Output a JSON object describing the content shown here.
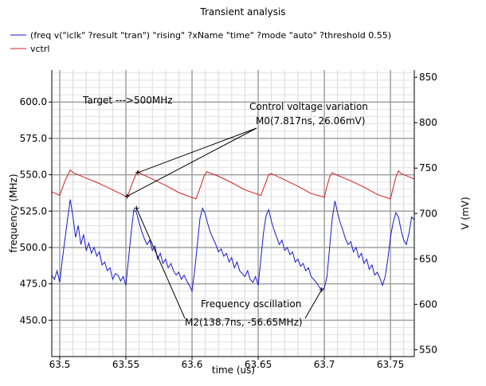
{
  "chart_data": {
    "type": "line",
    "title": "Transient analysis",
    "xlabel": "time (us)",
    "ylabel_left": "frequency (MHz)",
    "ylabel_right": "V (mV)",
    "xlim": [
      63.494,
      63.768
    ],
    "ylim_left": [
      425,
      622
    ],
    "ylim_right": [
      542.5,
      858
    ],
    "x_ticks": [
      {
        "value": 63.5,
        "label": "63.5"
      },
      {
        "value": 63.55,
        "label": "63.55"
      },
      {
        "value": 63.6,
        "label": "63.6"
      },
      {
        "value": 63.65,
        "label": "63.65"
      },
      {
        "value": 63.7,
        "label": "63.7"
      },
      {
        "value": 63.75,
        "label": "63.75"
      }
    ],
    "y_left_ticks": [
      {
        "value": 450,
        "label": "450.0"
      },
      {
        "value": 475,
        "label": "475.0"
      },
      {
        "value": 500,
        "label": "500.0"
      },
      {
        "value": 525,
        "label": "525.0"
      },
      {
        "value": 550,
        "label": "550.0"
      },
      {
        "value": 575,
        "label": "575.0"
      },
      {
        "value": 600,
        "label": "600.0"
      }
    ],
    "y_right_ticks": [
      {
        "value": 550,
        "label": "550"
      },
      {
        "value": 600,
        "label": "600"
      },
      {
        "value": 650,
        "label": "650"
      },
      {
        "value": 700,
        "label": "700"
      },
      {
        "value": 750,
        "label": "750"
      },
      {
        "value": 800,
        "label": "800"
      },
      {
        "value": 850,
        "label": "850"
      }
    ],
    "grid": true,
    "legend_position": "top-left",
    "series": [
      {
        "name": "(freq v(\"iclk\" ?result \"tran\") \"rising\" ?xName \"time\" ?mode \"auto\" ?threshold 0.55)",
        "axis": "left",
        "color": "#1a1acc",
        "x": [
          63.494,
          63.496,
          63.498,
          63.5,
          63.502,
          63.504,
          63.506,
          63.508,
          63.51,
          63.512,
          63.514,
          63.516,
          63.518,
          63.52,
          63.522,
          63.524,
          63.526,
          63.528,
          63.53,
          63.532,
          63.534,
          63.536,
          63.538,
          63.54,
          63.542,
          63.544,
          63.546,
          63.548,
          63.55,
          63.552,
          63.554,
          63.556,
          63.558,
          63.56,
          63.562,
          63.564,
          63.566,
          63.568,
          63.57,
          63.572,
          63.574,
          63.576,
          63.578,
          63.58,
          63.582,
          63.584,
          63.586,
          63.588,
          63.59,
          63.592,
          63.594,
          63.596,
          63.598,
          63.6,
          63.602,
          63.604,
          63.606,
          63.608,
          63.61,
          63.612,
          63.614,
          63.616,
          63.618,
          63.62,
          63.622,
          63.624,
          63.626,
          63.628,
          63.63,
          63.632,
          63.634,
          63.636,
          63.638,
          63.64,
          63.642,
          63.644,
          63.646,
          63.648,
          63.65,
          63.652,
          63.654,
          63.656,
          63.658,
          63.66,
          63.662,
          63.664,
          63.666,
          63.668,
          63.67,
          63.672,
          63.674,
          63.676,
          63.678,
          63.68,
          63.682,
          63.684,
          63.686,
          63.688,
          63.69,
          63.692,
          63.694,
          63.696,
          63.698,
          63.7,
          63.702,
          63.704,
          63.706,
          63.708,
          63.71,
          63.712,
          63.714,
          63.716,
          63.718,
          63.72,
          63.722,
          63.724,
          63.726,
          63.728,
          63.73,
          63.732,
          63.734,
          63.736,
          63.738,
          63.74,
          63.742,
          63.744,
          63.746,
          63.748,
          63.75,
          63.752,
          63.754,
          63.756,
          63.758,
          63.76,
          63.762,
          63.764,
          63.766,
          63.768
        ],
        "values": [
          481,
          478,
          484,
          476,
          492,
          506,
          520,
          533,
          521,
          507,
          515,
          502,
          509,
          498,
          503,
          496,
          500,
          494,
          497,
          488,
          490,
          484,
          486,
          478,
          482,
          481,
          477,
          480,
          474,
          492,
          510,
          526,
          524,
          517,
          511,
          506,
          502,
          505,
          498,
          501,
          492,
          496,
          489,
          492,
          486,
          489,
          484,
          481,
          483,
          478,
          481,
          477,
          474,
          470,
          484,
          502,
          520,
          527,
          523,
          516,
          510,
          506,
          502,
          497,
          499,
          494,
          496,
          490,
          493,
          486,
          490,
          484,
          482,
          480,
          484,
          478,
          476,
          480,
          474,
          492,
          510,
          522,
          526,
          518,
          512,
          507,
          502,
          505,
          498,
          500,
          495,
          497,
          490,
          492,
          487,
          489,
          484,
          486,
          480,
          478,
          476,
          473,
          471,
          472,
          480,
          500,
          520,
          532,
          524,
          517,
          512,
          506,
          502,
          504,
          497,
          500,
          493,
          496,
          489,
          492,
          485,
          488,
          481,
          483,
          479,
          474,
          480,
          492,
          507,
          517,
          524,
          521,
          512,
          505,
          502,
          510,
          521,
          519
        ]
      },
      {
        "name": "vctrl",
        "axis": "right",
        "color": "#d42020",
        "x": [
          63.494,
          63.5,
          63.504,
          63.506,
          63.508,
          63.51,
          63.52,
          63.53,
          63.54,
          63.551,
          63.555,
          63.557,
          63.559,
          63.561,
          63.57,
          63.58,
          63.59,
          63.603,
          63.607,
          63.609,
          63.611,
          63.62,
          63.63,
          63.64,
          63.652,
          63.656,
          63.658,
          63.66,
          63.67,
          63.68,
          63.69,
          63.7,
          63.702,
          63.704,
          63.706,
          63.71,
          63.72,
          63.73,
          63.74,
          63.75,
          63.752,
          63.754,
          63.756,
          63.758,
          63.768
        ],
        "values": [
          724,
          720,
          736,
          742,
          748,
          745,
          739,
          733,
          726,
          718,
          734,
          741,
          747,
          744,
          738,
          731,
          723,
          716,
          732,
          741,
          746,
          741,
          734,
          726,
          720,
          735,
          743,
          744,
          737,
          730,
          722,
          718,
          730,
          740,
          745,
          742,
          736,
          729,
          721,
          716,
          728,
          740,
          747,
          744,
          738
        ]
      }
    ],
    "annotations": [
      {
        "text": "Target --->500MHz"
      },
      {
        "text": "Control voltage variation"
      },
      {
        "text": "M0(7.817ns, 26.06mV)"
      },
      {
        "text": "Frequency oscillation"
      },
      {
        "text": "M2(138.7ns, -56.65MHz)"
      }
    ],
    "markers": [
      {
        "axis": "right",
        "x": 63.551,
        "y": 719
      },
      {
        "axis": "right",
        "x": 63.559,
        "y": 745
      },
      {
        "axis": "left",
        "x": 63.558,
        "y": 527
      },
      {
        "axis": "left",
        "x": 63.698,
        "y": 471
      }
    ]
  }
}
